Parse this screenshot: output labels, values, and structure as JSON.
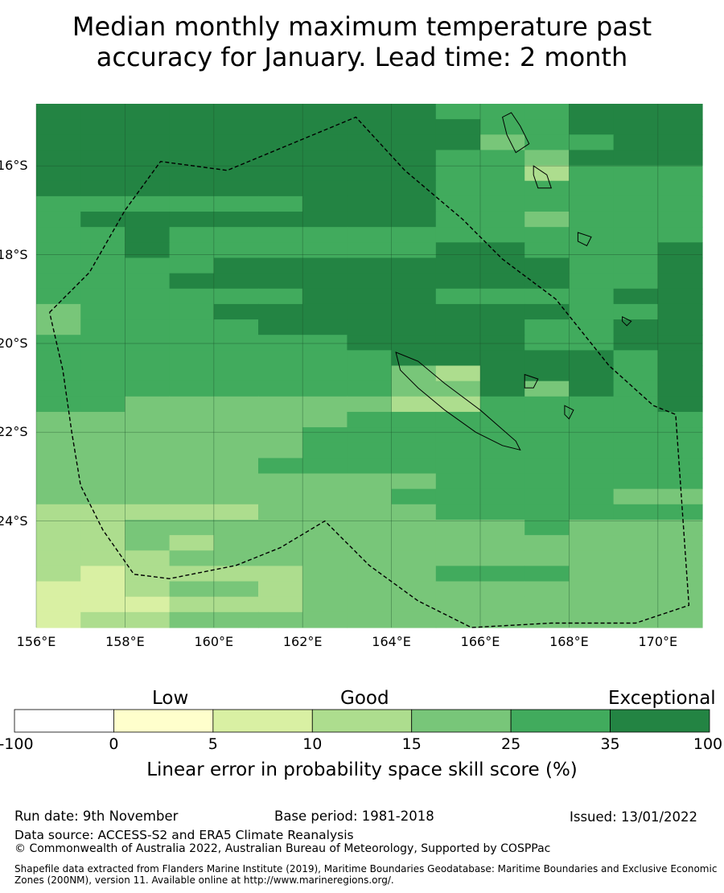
{
  "title": {
    "line1": "Median monthly maximum temperature past",
    "line2": "accuracy for January. Lead time: 2 month"
  },
  "map": {
    "lon_labels": [
      "156°E",
      "158°E",
      "160°E",
      "162°E",
      "164°E",
      "166°E",
      "168°E",
      "170°E"
    ],
    "lat_labels": [
      "16°S",
      "18°S",
      "20°S",
      "22°S",
      "24°S"
    ],
    "lon_range": [
      156,
      171
    ],
    "lat_range": [
      -14.6,
      -26.4
    ],
    "lon_ticks": [
      156,
      158,
      160,
      162,
      164,
      166,
      168,
      170
    ],
    "lat_ticks": [
      -16,
      -18,
      -20,
      -22,
      -24
    ],
    "grid": {
      "rows": [
        "666666666555666",
        "666666666655666",
        "666666666645566",
        "666666666554666",
        "666666666553555",
        "666666666555555",
        "555555666555555",
        "566666666554555",
        "556555555555555",
        "556555555665556",
        "555566666666556",
        "555666666666556",
        "555555666555566",
        "455566666666556",
        "455556666665566",
        "555555566665566",
        "555555556666656",
        "555555554366656",
        "555555554464656",
        "554444443355556",
        "444444455555555",
        "444444555555555",
        "444444555555555",
        "444445555555555",
        "444444444555555",
        "444444445555544",
        "333334444555555",
        "334444444445444",
        "334344444444444",
        "333444444444444",
        "323333444555444",
        "223443444444444",
        "222333444444444",
        "233444444444444"
      ],
      "palette": [
        "#ffffff",
        "#ffffcc",
        "#d9f0a3",
        "#addd8e",
        "#78c679",
        "#41ab5d",
        "#238443"
      ]
    },
    "boundary": {
      "path_lonlat": [
        [
          156.3,
          -19.3
        ],
        [
          157.2,
          -18.4
        ],
        [
          158.0,
          -17.0
        ],
        [
          158.8,
          -15.9
        ],
        [
          160.3,
          -16.1
        ],
        [
          163.2,
          -14.9
        ],
        [
          164.3,
          -16.1
        ],
        [
          165.6,
          -17.2
        ],
        [
          166.5,
          -18.1
        ],
        [
          167.7,
          -19.0
        ],
        [
          168.9,
          -20.5
        ],
        [
          169.9,
          -21.4
        ],
        [
          170.4,
          -21.6
        ],
        [
          170.7,
          -25.9
        ],
        [
          169.5,
          -26.3
        ],
        [
          167.6,
          -26.3
        ],
        [
          165.8,
          -26.4
        ],
        [
          164.6,
          -25.8
        ],
        [
          163.5,
          -25.0
        ],
        [
          162.5,
          -24.0
        ],
        [
          161.5,
          -24.6
        ],
        [
          160.5,
          -25.0
        ],
        [
          159.0,
          -25.3
        ],
        [
          158.2,
          -25.2
        ],
        [
          157.5,
          -24.2
        ],
        [
          157.0,
          -23.2
        ],
        [
          156.8,
          -22.0
        ],
        [
          156.6,
          -20.6
        ],
        [
          156.3,
          -19.3
        ]
      ]
    },
    "islands": {
      "new_caledonia": [
        [
          164.1,
          -20.2
        ],
        [
          164.6,
          -20.4
        ],
        [
          165.2,
          -20.9
        ],
        [
          166.0,
          -21.5
        ],
        [
          166.8,
          -22.2
        ],
        [
          166.9,
          -22.4
        ],
        [
          166.5,
          -22.3
        ],
        [
          165.9,
          -22.0
        ],
        [
          165.2,
          -21.5
        ],
        [
          164.6,
          -21.0
        ],
        [
          164.2,
          -20.6
        ],
        [
          164.1,
          -20.2
        ]
      ],
      "espiritu_santo": [
        [
          166.7,
          -14.8
        ],
        [
          166.9,
          -15.1
        ],
        [
          167.1,
          -15.5
        ],
        [
          166.8,
          -15.7
        ],
        [
          166.6,
          -15.3
        ],
        [
          166.5,
          -14.9
        ],
        [
          166.7,
          -14.8
        ]
      ],
      "malekula": [
        [
          167.2,
          -16.0
        ],
        [
          167.5,
          -16.2
        ],
        [
          167.6,
          -16.5
        ],
        [
          167.3,
          -16.5
        ],
        [
          167.2,
          -16.2
        ],
        [
          167.2,
          -16.0
        ]
      ],
      "efate": [
        [
          168.2,
          -17.5
        ],
        [
          168.5,
          -17.6
        ],
        [
          168.4,
          -17.8
        ],
        [
          168.2,
          -17.7
        ],
        [
          168.2,
          -17.5
        ]
      ],
      "tanna": [
        [
          169.2,
          -19.4
        ],
        [
          169.4,
          -19.5
        ],
        [
          169.3,
          -19.6
        ],
        [
          169.2,
          -19.5
        ],
        [
          169.2,
          -19.4
        ]
      ],
      "lifou": [
        [
          167.0,
          -20.7
        ],
        [
          167.3,
          -20.8
        ],
        [
          167.2,
          -21.0
        ],
        [
          167.0,
          -21.0
        ],
        [
          167.0,
          -20.7
        ]
      ],
      "mare": [
        [
          167.9,
          -21.4
        ],
        [
          168.1,
          -21.5
        ],
        [
          168.0,
          -21.7
        ],
        [
          167.9,
          -21.6
        ],
        [
          167.9,
          -21.4
        ]
      ]
    }
  },
  "colorbar": {
    "categories": [
      "Low",
      "Good",
      "Exceptional"
    ],
    "ticks": [
      "-100",
      "0",
      "5",
      "10",
      "15",
      "25",
      "35",
      "100"
    ],
    "bins": [
      {
        "color": "#ffffff"
      },
      {
        "color": "#ffffcc"
      },
      {
        "color": "#d9f0a3"
      },
      {
        "color": "#addd8e"
      },
      {
        "color": "#78c679"
      },
      {
        "color": "#41ab5d"
      },
      {
        "color": "#238443"
      }
    ],
    "label": "Linear error in probability space skill score (%)"
  },
  "footer": {
    "run_date": "Run date: 9th November",
    "base_period": "Base period: 1981-2018",
    "issued": "Issued: 13/01/2022",
    "data_source": "Data source: ACCESS-S2 and ERA5 Climate Reanalysis",
    "copyright": "© Commonwealth of Australia 2022, Australian Bureau of Meteorology, Supported by COSPPac",
    "shapefile": "Shapefile data extracted from Flanders Marine Institute (2019), Maritime Boundaries Geodatabase: Maritime Boundaries and Exclusive Economic Zones (200NM), version 11. Available online at http://www.marineregions.org/."
  }
}
